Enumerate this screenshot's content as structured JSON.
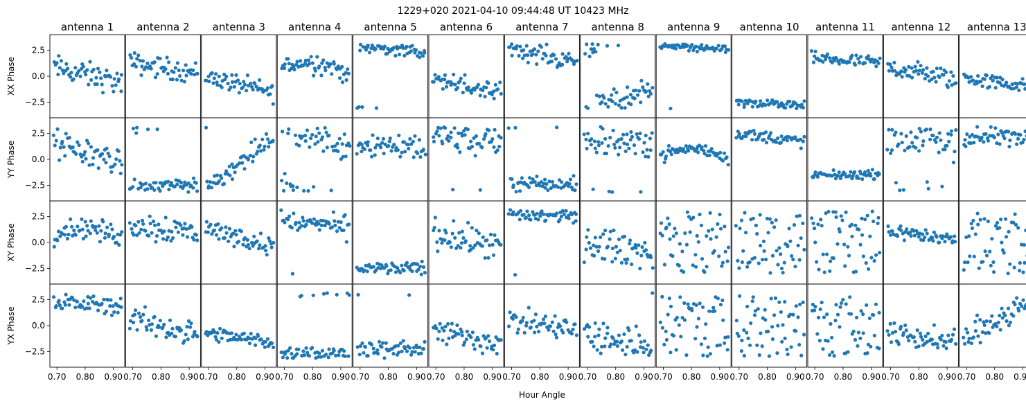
{
  "figure": {
    "suptitle": "1229+020  2021-04-10 09:44:48 UT  10423 MHz",
    "xlabel": "Hour Angle",
    "point_color": "#1f77b4"
  },
  "chart_data": {
    "type": "scatter",
    "title": "1229+020  2021-04-10 09:44:48 UT  10423 MHz",
    "xlabel": "Hour Angle",
    "column_titles": [
      "antenna 1",
      "antenna 2",
      "antenna 3",
      "antenna 4",
      "antenna 5",
      "antenna 6",
      "antenna 7",
      "antenna 8",
      "antenna 9",
      "antenna 10",
      "antenna 11",
      "antenna 12",
      "antenna 13"
    ],
    "row_ylabels": [
      "XX Phase",
      "YY Phase",
      "XY Phase",
      "YX Phase"
    ],
    "xlim": [
      0.675,
      0.94
    ],
    "ylim": [
      -4.0,
      4.0
    ],
    "xticks": [
      0.7,
      0.8,
      0.9
    ],
    "xtick_labels": [
      "0.70",
      "0.80",
      "0.90"
    ],
    "yticks": [
      2.5,
      0.0,
      -2.5
    ],
    "ytick_labels": [
      "2.5",
      "0.0",
      "−2.5"
    ],
    "x_range": [
      0.69,
      0.93
    ],
    "points_per_panel": 56,
    "panels": [
      [
        {
          "antenna": "antenna 1",
          "polarization": "XX Phase",
          "pattern": "trend",
          "a": 0.1,
          "b": -1.5,
          "noise": 0.6
        },
        {
          "antenna": "antenna 2",
          "polarization": "XX Phase",
          "pattern": "trend",
          "a": 0.8,
          "b": -1.0,
          "noise": 0.5
        },
        {
          "antenna": "antenna 3",
          "polarization": "XX Phase",
          "pattern": "trend",
          "a": -0.8,
          "b": -1.6,
          "noise": 0.45
        },
        {
          "antenna": "antenna 4",
          "polarization": "XX Phase",
          "pattern": "arch",
          "a": 0.5,
          "b": -1.2,
          "noise": 0.5
        },
        {
          "antenna": "antenna 5",
          "polarization": "XX Phase",
          "pattern": "wrap",
          "a": 2.6,
          "b": -0.6,
          "noise": 0.3,
          "w": 0.1
        },
        {
          "antenna": "antenna 6",
          "polarization": "XX Phase",
          "pattern": "trend",
          "a": -1.0,
          "b": -1.4,
          "noise": 0.45,
          "w": 0.08
        },
        {
          "antenna": "antenna 7",
          "polarization": "XX Phase",
          "pattern": "trend",
          "a": 2.1,
          "b": -1.4,
          "noise": 0.5,
          "w": 0.05
        },
        {
          "antenna": "antenna 8",
          "polarization": "XX Phase",
          "pattern": "trend",
          "a": -2.3,
          "b": 2.5,
          "noise": 0.55,
          "w": 0.25
        },
        {
          "antenna": "antenna 9",
          "polarization": "XX Phase",
          "pattern": "wrap",
          "a": 2.75,
          "b": -0.3,
          "noise": 0.18,
          "w": 0.06
        },
        {
          "antenna": "antenna 10",
          "polarization": "XX Phase",
          "pattern": "wrap",
          "a": -2.7,
          "b": -0.3,
          "noise": 0.2,
          "w": 0.12
        },
        {
          "antenna": "antenna 11",
          "polarization": "XX Phase",
          "pattern": "trend",
          "a": 1.5,
          "b": -0.5,
          "noise": 0.3
        },
        {
          "antenna": "antenna 12",
          "polarization": "XX Phase",
          "pattern": "trend",
          "a": 0.3,
          "b": -1.2,
          "noise": 0.5
        },
        {
          "antenna": "antenna 13",
          "polarization": "XX Phase",
          "pattern": "trend",
          "a": -0.6,
          "b": -0.9,
          "noise": 0.35
        }
      ],
      [
        {
          "antenna": "antenna 1",
          "polarization": "YY Phase",
          "pattern": "trend",
          "a": 0.6,
          "b": -1.8,
          "noise": 0.7
        },
        {
          "antenna": "antenna 2",
          "polarization": "YY Phase",
          "pattern": "wrap",
          "a": -2.6,
          "b": 0.5,
          "noise": 0.4,
          "w": 0.45
        },
        {
          "antenna": "antenna 3",
          "polarization": "YY Phase",
          "pattern": "rise",
          "a": -2.7,
          "b": 4.8,
          "noise": 0.5,
          "w": 0.3
        },
        {
          "antenna": "antenna 4",
          "polarization": "YY Phase",
          "pattern": "trend",
          "a": 2.3,
          "b": -2.0,
          "noise": 0.8
        },
        {
          "antenna": "antenna 5",
          "polarization": "YY Phase",
          "pattern": "trend",
          "a": 1.4,
          "b": -0.2,
          "noise": 0.7
        },
        {
          "antenna": "antenna 6",
          "polarization": "YY Phase",
          "pattern": "wrap",
          "a": 2.0,
          "b": -0.4,
          "noise": 0.8,
          "w": 0.2
        },
        {
          "antenna": "antenna 7",
          "polarization": "YY Phase",
          "pattern": "wrap",
          "a": -2.4,
          "b": 0.0,
          "noise": 0.45,
          "w": 0.35
        },
        {
          "antenna": "antenna 8",
          "polarization": "YY Phase",
          "pattern": "wrap",
          "a": 1.8,
          "b": -0.5,
          "noise": 0.9,
          "w": 0.3
        },
        {
          "antenna": "antenna 9",
          "polarization": "YY Phase",
          "pattern": "arch",
          "a": 0.2,
          "b": -0.5,
          "noise": 0.3
        },
        {
          "antenna": "antenna 10",
          "polarization": "YY Phase",
          "pattern": "trend",
          "a": 2.1,
          "b": -0.8,
          "noise": 0.3
        },
        {
          "antenna": "antenna 11",
          "polarization": "YY Phase",
          "pattern": "trend",
          "a": -1.5,
          "b": 0.1,
          "noise": 0.2
        },
        {
          "antenna": "antenna 12",
          "polarization": "YY Phase",
          "pattern": "wrap",
          "a": 2.0,
          "b": -0.3,
          "noise": 1.0,
          "w": 0.35
        },
        {
          "antenna": "antenna 13",
          "polarization": "YY Phase",
          "pattern": "wrap",
          "a": 2.2,
          "b": 0.2,
          "noise": 0.45,
          "w": 0.1
        }
      ],
      [
        {
          "antenna": "antenna 1",
          "polarization": "XY Phase",
          "pattern": "arch",
          "a": 0.6,
          "b": -1.0,
          "noise": 0.5
        },
        {
          "antenna": "antenna 2",
          "polarization": "XY Phase",
          "pattern": "trend",
          "a": 1.4,
          "b": -0.8,
          "noise": 0.7
        },
        {
          "antenna": "antenna 3",
          "polarization": "XY Phase",
          "pattern": "trend",
          "a": 0.5,
          "b": -1.8,
          "noise": 0.45
        },
        {
          "antenna": "antenna 4",
          "polarization": "XY Phase",
          "pattern": "trend",
          "a": 1.8,
          "b": -0.8,
          "noise": 0.5,
          "w": 0.05
        },
        {
          "antenna": "antenna 5",
          "polarization": "XY Phase",
          "pattern": "wrap",
          "a": -2.5,
          "b": 0.0,
          "noise": 0.3,
          "w": 0.22
        },
        {
          "antenna": "antenna 6",
          "polarization": "XY Phase",
          "pattern": "trend",
          "a": 0.2,
          "b": -1.4,
          "noise": 0.7
        },
        {
          "antenna": "antenna 7",
          "polarization": "XY Phase",
          "pattern": "wrap",
          "a": 2.6,
          "b": -0.3,
          "noise": 0.35,
          "w": 0.3
        },
        {
          "antenna": "antenna 8",
          "polarization": "XY Phase",
          "pattern": "trend",
          "a": -0.5,
          "b": -1.0,
          "noise": 0.8
        },
        {
          "antenna": "antenna 9",
          "polarization": "XY Phase",
          "pattern": "random",
          "a": 0.0,
          "b": 0.0,
          "noise": 0.0
        },
        {
          "antenna": "antenna 10",
          "polarization": "XY Phase",
          "pattern": "random",
          "a": 0.0,
          "b": 0.0,
          "noise": 0.0
        },
        {
          "antenna": "antenna 11",
          "polarization": "XY Phase",
          "pattern": "random",
          "a": 0.0,
          "b": 0.0,
          "noise": 0.0
        },
        {
          "antenna": "antenna 12",
          "polarization": "XY Phase",
          "pattern": "trend",
          "a": 0.7,
          "b": -1.0,
          "noise": 0.35
        },
        {
          "antenna": "antenna 13",
          "polarization": "XY Phase",
          "pattern": "random",
          "a": 0.0,
          "b": 0.0,
          "noise": 0.0
        }
      ],
      [
        {
          "antenna": "antenna 1",
          "polarization": "YX Phase",
          "pattern": "trend",
          "a": 2.1,
          "b": -0.5,
          "noise": 0.45,
          "w": 0.04
        },
        {
          "antenna": "antenna 2",
          "polarization": "YX Phase",
          "pattern": "trend",
          "a": -0.1,
          "b": -1.6,
          "noise": 0.6
        },
        {
          "antenna": "antenna 3",
          "polarization": "YX Phase",
          "pattern": "trend",
          "a": -1.2,
          "b": -0.8,
          "noise": 0.35
        },
        {
          "antenna": "antenna 4",
          "polarization": "YX Phase",
          "pattern": "wrap",
          "a": -2.7,
          "b": 0.0,
          "noise": 0.35,
          "w": 0.45
        },
        {
          "antenna": "antenna 5",
          "polarization": "YX Phase",
          "pattern": "wrap",
          "a": -2.3,
          "b": 0.0,
          "noise": 0.45,
          "w": 0.42
        },
        {
          "antenna": "antenna 6",
          "polarization": "YX Phase",
          "pattern": "trend",
          "a": -1.1,
          "b": -1.2,
          "noise": 0.6
        },
        {
          "antenna": "antenna 7",
          "polarization": "YX Phase",
          "pattern": "trend",
          "a": 0.0,
          "b": -0.8,
          "noise": 0.6
        },
        {
          "antenna": "antenna 8",
          "polarization": "YX Phase",
          "pattern": "trend",
          "a": -1.4,
          "b": -0.8,
          "noise": 0.8,
          "w": 0.05
        },
        {
          "antenna": "antenna 9",
          "polarization": "YX Phase",
          "pattern": "random",
          "a": 0.0,
          "b": 0.0,
          "noise": 0.0
        },
        {
          "antenna": "antenna 10",
          "polarization": "YX Phase",
          "pattern": "random",
          "a": 0.0,
          "b": 0.0,
          "noise": 0.0
        },
        {
          "antenna": "antenna 11",
          "polarization": "YX Phase",
          "pattern": "random",
          "a": 0.0,
          "b": 0.0,
          "noise": 0.0
        },
        {
          "antenna": "antenna 12",
          "polarization": "YX Phase",
          "pattern": "trend",
          "a": -1.2,
          "b": -0.9,
          "noise": 0.55
        },
        {
          "antenna": "antenna 13",
          "polarization": "YX Phase",
          "pattern": "rise",
          "a": -1.2,
          "b": 3.6,
          "noise": 0.7,
          "w": 0.2
        }
      ]
    ]
  }
}
